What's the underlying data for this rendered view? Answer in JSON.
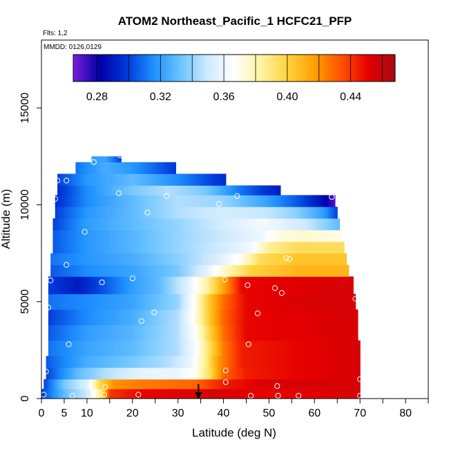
{
  "chart_data": {
    "type": "heatmap",
    "title": "ATOM2 Northeast_Pacific_1 HCFC21_PFP",
    "flights_label": "Flts: 1,2",
    "dates_label": "MMDD: 0126,0129",
    "xlabel": "Latitude (deg N)",
    "ylabel": "Altitude (m)",
    "xlim": [
      0,
      85
    ],
    "ylim": [
      0,
      18500
    ],
    "x_ticks": [
      0,
      5,
      10,
      20,
      30,
      40,
      50,
      60,
      70,
      80
    ],
    "x_minor_ticks": [
      15,
      25,
      35,
      45,
      55,
      65,
      75,
      85
    ],
    "y_ticks": [
      0,
      5000,
      10000,
      15000
    ],
    "colorbar": {
      "range": [
        0.265,
        0.468
      ],
      "ticks": [
        0.28,
        0.32,
        0.36,
        0.4,
        0.44
      ],
      "tick_labels": [
        "0.28",
        "0.32",
        "0.36",
        "0.40",
        "0.44"
      ]
    },
    "grid": false,
    "arrow_latitude": 34.5,
    "samples": [
      {
        "lat": 0.5,
        "alt": 200
      },
      {
        "lat": 6.8,
        "alt": 150
      },
      {
        "lat": 13.8,
        "alt": 200
      },
      {
        "lat": 21.3,
        "alt": 200
      },
      {
        "lat": 46,
        "alt": 150
      },
      {
        "lat": 52,
        "alt": 150
      },
      {
        "lat": 56.5,
        "alt": 150
      },
      {
        "lat": 70,
        "alt": 150
      },
      {
        "lat": 14,
        "alt": 600
      },
      {
        "lat": 40.5,
        "alt": 850
      },
      {
        "lat": 51.8,
        "alt": 650
      },
      {
        "lat": 70,
        "alt": 1000
      },
      {
        "lat": 1,
        "alt": 1400
      },
      {
        "lat": 40.5,
        "alt": 1450
      },
      {
        "lat": 6,
        "alt": 2800
      },
      {
        "lat": 45.5,
        "alt": 2800
      },
      {
        "lat": 22,
        "alt": 4000
      },
      {
        "lat": 24.8,
        "alt": 4450
      },
      {
        "lat": 47.5,
        "alt": 4400
      },
      {
        "lat": 1.5,
        "alt": 4700
      },
      {
        "lat": 52.8,
        "alt": 5450
      },
      {
        "lat": 51.3,
        "alt": 5700
      },
      {
        "lat": 45.3,
        "alt": 5850
      },
      {
        "lat": 69,
        "alt": 5150
      },
      {
        "lat": 13.3,
        "alt": 6000
      },
      {
        "lat": 20,
        "alt": 6200
      },
      {
        "lat": 40.3,
        "alt": 6150
      },
      {
        "lat": 2,
        "alt": 6100
      },
      {
        "lat": 5.5,
        "alt": 6900
      },
      {
        "lat": 38.3,
        "alt": 6700
      },
      {
        "lat": 53.8,
        "alt": 7250
      },
      {
        "lat": 54.5,
        "alt": 7200
      },
      {
        "lat": 9.5,
        "alt": 8600
      },
      {
        "lat": 49,
        "alt": 9150
      },
      {
        "lat": 23.3,
        "alt": 9600
      },
      {
        "lat": 39,
        "alt": 10050
      },
      {
        "lat": 3,
        "alt": 10300
      },
      {
        "lat": 27.5,
        "alt": 10450
      },
      {
        "lat": 43,
        "alt": 10450
      },
      {
        "lat": 17,
        "alt": 10600
      },
      {
        "lat": 63.8,
        "alt": 10400
      },
      {
        "lat": 3.5,
        "alt": 11250
      },
      {
        "lat": 5.5,
        "alt": 11250
      },
      {
        "lat": 11.5,
        "alt": 12200
      },
      {
        "lat": 17.3,
        "alt": 12550
      }
    ],
    "rows": [
      {
        "alt": [
          0,
          500
        ],
        "lat": [
          0,
          70
        ],
        "stops": [
          [
            0,
            0.3
          ],
          [
            5,
            0.33
          ],
          [
            10,
            0.35
          ],
          [
            13,
            0.385
          ],
          [
            15,
            0.44
          ],
          [
            22,
            0.45
          ],
          [
            38,
            0.455
          ],
          [
            50,
            0.45
          ],
          [
            70,
            0.455
          ]
        ]
      },
      {
        "alt": [
          500,
          1000
        ],
        "lat": [
          0.5,
          70
        ],
        "stops": [
          [
            0.5,
            0.3
          ],
          [
            5,
            0.335
          ],
          [
            10,
            0.355
          ],
          [
            13,
            0.4
          ],
          [
            16,
            0.42
          ],
          [
            22,
            0.425
          ],
          [
            34,
            0.43
          ],
          [
            40,
            0.445
          ],
          [
            50,
            0.455
          ],
          [
            70,
            0.455
          ]
        ]
      },
      {
        "alt": [
          1000,
          1600
        ],
        "lat": [
          1,
          70
        ],
        "stops": [
          [
            1,
            0.3
          ],
          [
            8,
            0.33
          ],
          [
            14,
            0.345
          ],
          [
            22,
            0.358
          ],
          [
            30,
            0.36
          ],
          [
            34,
            0.37
          ],
          [
            37,
            0.395
          ],
          [
            40,
            0.43
          ],
          [
            45,
            0.445
          ],
          [
            55,
            0.45
          ],
          [
            70,
            0.455
          ]
        ]
      },
      {
        "alt": [
          1600,
          2200
        ],
        "lat": [
          1,
          70
        ],
        "stops": [
          [
            1,
            0.305
          ],
          [
            10,
            0.325
          ],
          [
            20,
            0.335
          ],
          [
            28,
            0.345
          ],
          [
            33,
            0.36
          ],
          [
            36,
            0.385
          ],
          [
            39,
            0.42
          ],
          [
            44,
            0.445
          ],
          [
            55,
            0.45
          ],
          [
            70,
            0.455
          ]
        ]
      },
      {
        "alt": [
          2200,
          3000
        ],
        "lat": [
          1.5,
          70
        ],
        "stops": [
          [
            1.5,
            0.31
          ],
          [
            10,
            0.322
          ],
          [
            20,
            0.33
          ],
          [
            30,
            0.345
          ],
          [
            34,
            0.365
          ],
          [
            37,
            0.395
          ],
          [
            40,
            0.425
          ],
          [
            44,
            0.445
          ],
          [
            55,
            0.45
          ],
          [
            70,
            0.455
          ]
        ]
      },
      {
        "alt": [
          3000,
          3800
        ],
        "lat": [
          1.5,
          69.5
        ],
        "stops": [
          [
            1.5,
            0.305
          ],
          [
            10,
            0.32
          ],
          [
            20,
            0.328
          ],
          [
            30,
            0.345
          ],
          [
            34,
            0.368
          ],
          [
            37,
            0.4
          ],
          [
            40,
            0.428
          ],
          [
            45,
            0.45
          ],
          [
            69.5,
            0.455
          ]
        ]
      },
      {
        "alt": [
          3800,
          4600
        ],
        "lat": [
          1.5,
          69.5
        ],
        "stops": [
          [
            1.5,
            0.3
          ],
          [
            10,
            0.315
          ],
          [
            20,
            0.325
          ],
          [
            30,
            0.345
          ],
          [
            34,
            0.372
          ],
          [
            37,
            0.405
          ],
          [
            40,
            0.43
          ],
          [
            45,
            0.45
          ],
          [
            69.5,
            0.455
          ]
        ]
      },
      {
        "alt": [
          4600,
          5400
        ],
        "lat": [
          1.5,
          69
        ],
        "stops": [
          [
            1.5,
            0.31
          ],
          [
            10,
            0.315
          ],
          [
            20,
            0.322
          ],
          [
            30,
            0.34
          ],
          [
            34,
            0.372
          ],
          [
            37,
            0.405
          ],
          [
            40,
            0.428
          ],
          [
            45,
            0.45
          ],
          [
            60,
            0.455
          ],
          [
            69,
            0.455
          ]
        ]
      },
      {
        "alt": [
          5400,
          6300
        ],
        "lat": [
          1.5,
          68.5
        ],
        "stops": [
          [
            1.5,
            0.3
          ],
          [
            8,
            0.29
          ],
          [
            12,
            0.3
          ],
          [
            20,
            0.32
          ],
          [
            26,
            0.33
          ],
          [
            32,
            0.355
          ],
          [
            36,
            0.38
          ],
          [
            40,
            0.415
          ],
          [
            44,
            0.45
          ],
          [
            68.5,
            0.455
          ]
        ]
      },
      {
        "alt": [
          6300,
          6900
        ],
        "lat": [
          2,
          67.5
        ],
        "stops": [
          [
            2,
            0.305
          ],
          [
            10,
            0.315
          ],
          [
            20,
            0.322
          ],
          [
            30,
            0.335
          ],
          [
            36,
            0.355
          ],
          [
            40,
            0.375
          ],
          [
            46,
            0.4
          ],
          [
            56,
            0.41
          ],
          [
            67.5,
            0.41
          ]
        ]
      },
      {
        "alt": [
          6900,
          7500
        ],
        "lat": [
          2,
          67
        ],
        "stops": [
          [
            2,
            0.31
          ],
          [
            10,
            0.318
          ],
          [
            20,
            0.325
          ],
          [
            30,
            0.338
          ],
          [
            38,
            0.352
          ],
          [
            44,
            0.37
          ],
          [
            48,
            0.395
          ],
          [
            56,
            0.405
          ],
          [
            67,
            0.405
          ]
        ]
      },
      {
        "alt": [
          7500,
          8100
        ],
        "lat": [
          2.5,
          66.5
        ],
        "stops": [
          [
            2.5,
            0.305
          ],
          [
            10,
            0.318
          ],
          [
            20,
            0.328
          ],
          [
            30,
            0.34
          ],
          [
            40,
            0.352
          ],
          [
            46,
            0.362
          ],
          [
            50,
            0.385
          ],
          [
            56,
            0.395
          ],
          [
            66.5,
            0.395
          ]
        ]
      },
      {
        "alt": [
          8100,
          8700
        ],
        "lat": [
          2.5,
          66
        ],
        "stops": [
          [
            2.5,
            0.305
          ],
          [
            10,
            0.318
          ],
          [
            20,
            0.328
          ],
          [
            30,
            0.34
          ],
          [
            40,
            0.35
          ],
          [
            48,
            0.36
          ],
          [
            52,
            0.372
          ],
          [
            58,
            0.375
          ],
          [
            66,
            0.37
          ]
        ]
      },
      {
        "alt": [
          8700,
          9300
        ],
        "lat": [
          2.5,
          65.5
        ],
        "stops": [
          [
            2.5,
            0.3
          ],
          [
            10,
            0.32
          ],
          [
            20,
            0.33
          ],
          [
            30,
            0.34
          ],
          [
            40,
            0.352
          ],
          [
            48,
            0.362
          ],
          [
            52,
            0.358
          ],
          [
            58,
            0.35
          ],
          [
            65.5,
            0.33
          ]
        ]
      },
      {
        "alt": [
          9300,
          9900
        ],
        "lat": [
          3,
          65
        ],
        "stops": [
          [
            3,
            0.3
          ],
          [
            10,
            0.318
          ],
          [
            20,
            0.33
          ],
          [
            30,
            0.345
          ],
          [
            40,
            0.352
          ],
          [
            50,
            0.348
          ],
          [
            56,
            0.338
          ],
          [
            62,
            0.32
          ],
          [
            65,
            0.3
          ]
        ]
      },
      {
        "alt": [
          9900,
          10500
        ],
        "lat": [
          3,
          64.5
        ],
        "stops": [
          [
            3,
            0.295
          ],
          [
            10,
            0.315
          ],
          [
            20,
            0.33
          ],
          [
            30,
            0.345
          ],
          [
            40,
            0.34
          ],
          [
            50,
            0.32
          ],
          [
            58,
            0.3
          ],
          [
            62,
            0.285
          ],
          [
            64.5,
            0.27
          ]
        ]
      },
      {
        "alt": [
          10500,
          11000
        ],
        "lat": [
          3.5,
          52.5
        ],
        "stops": [
          [
            3.5,
            0.295
          ],
          [
            10,
            0.315
          ],
          [
            20,
            0.335
          ],
          [
            28,
            0.345
          ],
          [
            36,
            0.335
          ],
          [
            44,
            0.31
          ],
          [
            52.5,
            0.29
          ]
        ]
      },
      {
        "alt": [
          11000,
          11600
        ],
        "lat": [
          3.5,
          40.5
        ],
        "stops": [
          [
            3.5,
            0.3
          ],
          [
            10,
            0.318
          ],
          [
            20,
            0.33
          ],
          [
            30,
            0.315
          ],
          [
            40.5,
            0.295
          ]
        ]
      },
      {
        "alt": [
          11600,
          12200
        ],
        "lat": [
          7.5,
          29.5
        ],
        "stops": [
          [
            7.5,
            0.31
          ],
          [
            14,
            0.325
          ],
          [
            20,
            0.318
          ],
          [
            29.5,
            0.298
          ]
        ]
      },
      {
        "alt": [
          12200,
          12500
        ],
        "lat": [
          11,
          17.5
        ],
        "stops": [
          [
            11,
            0.32
          ],
          [
            14,
            0.322
          ],
          [
            17.5,
            0.3
          ]
        ]
      }
    ]
  },
  "colors": {
    "colormap": [
      "#7a1ed6",
      "#0000a8",
      "#0038d8",
      "#1e90ff",
      "#6cc4ff",
      "#cde9ff",
      "#ffffff",
      "#fff3a0",
      "#ffd23c",
      "#ffa000",
      "#ff5000",
      "#e60000",
      "#a50a14"
    ],
    "sample_marker": "#ffffff",
    "frame": "#000000"
  }
}
